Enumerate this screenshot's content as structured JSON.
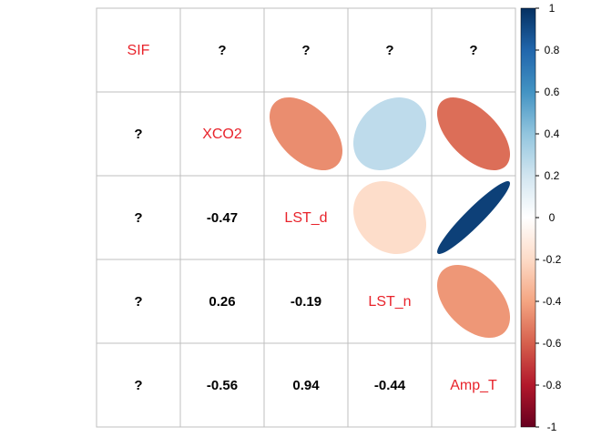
{
  "chart_data": {
    "type": "heatmap",
    "variables": [
      "SIF",
      "XCO2",
      "LST_d",
      "LST_n",
      "Amp_T"
    ],
    "lower_labels": [
      [
        "",
        "",
        "",
        "",
        ""
      ],
      [
        "?",
        "",
        "",
        "",
        ""
      ],
      [
        "?",
        "-0.47",
        "",
        "",
        ""
      ],
      [
        "?",
        "0.26",
        "-0.19",
        "",
        ""
      ],
      [
        "?",
        "-0.56",
        "0.94",
        "-0.44",
        ""
      ]
    ],
    "first_row_upper_labels": [
      "?",
      "?",
      "?",
      "?"
    ],
    "correlations": [
      [
        null,
        null,
        null,
        null,
        null
      ],
      [
        null,
        1,
        -0.47,
        0.26,
        -0.56
      ],
      [
        null,
        -0.47,
        1,
        -0.19,
        0.94
      ],
      [
        null,
        0.26,
        -0.19,
        1,
        -0.44
      ],
      [
        null,
        -0.56,
        0.94,
        -0.44,
        1
      ]
    ],
    "colorbar": {
      "ticks": [
        "1",
        "0.8",
        "0.6",
        "0.4",
        "0.2",
        "0",
        "-0.2",
        "-0.4",
        "-0.6",
        "-0.8",
        "-1"
      ],
      "range": [
        -1,
        1
      ],
      "colors": [
        "#67001f",
        "#b2182b",
        "#d6604d",
        "#f4a582",
        "#fddbc7",
        "#ffffff",
        "#d1e5f0",
        "#92c5de",
        "#4393c3",
        "#2166ac",
        "#053061"
      ]
    },
    "upper_glyph": "ellipse",
    "lower_glyph": "number",
    "diagonal_color": "#e8232b",
    "grid": true
  }
}
